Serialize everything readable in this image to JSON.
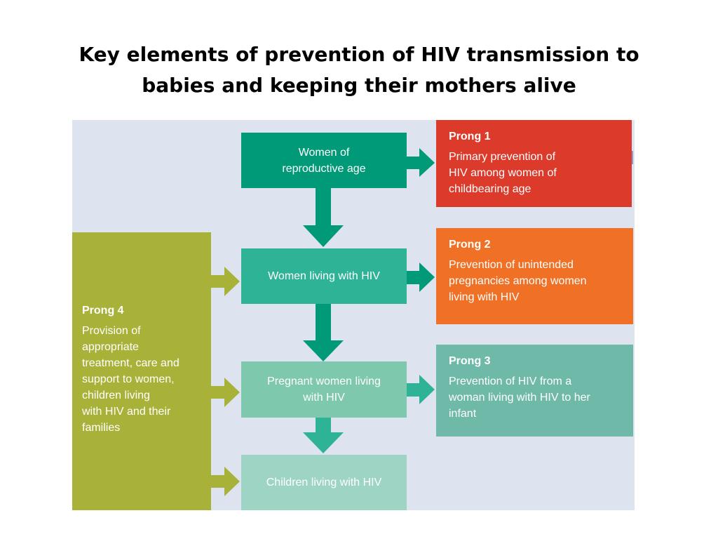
{
  "title": {
    "line1": "Key elements of prevention  of HIV transmission to",
    "line2": "babies and keeping their mothers alive"
  },
  "flow": {
    "women_reproductive": [
      "Women of",
      "reproductive age"
    ],
    "women_hiv": [
      "Women living with HIV"
    ],
    "pregnant": [
      "Pregnant women living",
      "with HIV"
    ],
    "children": [
      "Children living with HIV"
    ]
  },
  "prongs": {
    "p1": {
      "title": "Prong 1",
      "lines": [
        "Primary prevention of",
        "HIV among women of",
        "childbearing age"
      ]
    },
    "p2": {
      "title": "Prong 2",
      "lines": [
        "Prevention of unintended",
        "pregnancies among women",
        "living with HIV"
      ]
    },
    "p3": {
      "title": "Prong 3",
      "lines": [
        "Prevention of HIV from a",
        "woman living with HIV to her",
        "infant"
      ]
    },
    "p4": {
      "title": "Prong 4",
      "lines": [
        "Provision of",
        "appropriate",
        "treatment, care and",
        "support to women,",
        "children living",
        "with HIV and their",
        "families"
      ]
    }
  },
  "colors": {
    "panel_bg": "#dde4f0",
    "women_reproductive": "#019a78",
    "women_hiv": "#2fb397",
    "pregnant": "#7ec8ae",
    "children": "#9dd4c3",
    "prong1": "#dc3a2a",
    "prong2": "#f07125",
    "prong3": "#6fb9a9",
    "prong4": "#a8b238"
  }
}
